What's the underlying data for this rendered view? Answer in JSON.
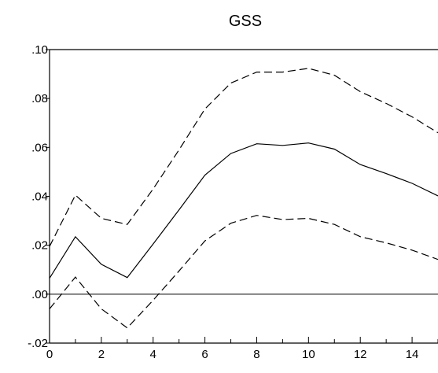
{
  "chart_data": {
    "type": "line",
    "title": "GSS",
    "xlabel": "",
    "ylabel": "",
    "xlim": [
      0,
      15
    ],
    "ylim": [
      -0.02,
      0.1
    ],
    "x": [
      0,
      1,
      2,
      3,
      4,
      5,
      6,
      7,
      8,
      9,
      10,
      11,
      12,
      13,
      14,
      15
    ],
    "x_ticks": [
      0,
      2,
      4,
      6,
      8,
      10,
      12,
      14
    ],
    "x_tick_labels": [
      "0",
      "2",
      "4",
      "6",
      "8",
      "10",
      "12",
      "14"
    ],
    "y_ticks": [
      -0.02,
      0.0,
      0.02,
      0.04,
      0.06,
      0.08,
      0.1
    ],
    "y_tick_labels": [
      "-.02",
      ".00",
      ".02",
      ".04",
      ".06",
      ".08",
      ".10"
    ],
    "zero_line": true,
    "grid": false,
    "series": [
      {
        "style": "solid",
        "values": [
          0.0065,
          0.0235,
          0.0122,
          0.0068,
          0.0205,
          0.0345,
          0.0487,
          0.0575,
          0.0615,
          0.0608,
          0.0618,
          0.0593,
          0.053,
          0.0493,
          0.0453,
          0.0402
        ]
      },
      {
        "style": "dashed",
        "values": [
          0.0195,
          0.0405,
          0.031,
          0.0285,
          0.043,
          0.059,
          0.0757,
          0.0863,
          0.0908,
          0.0908,
          0.0923,
          0.0895,
          0.0828,
          0.078,
          0.0725,
          0.066
        ]
      },
      {
        "style": "dashed",
        "values": [
          -0.006,
          0.007,
          -0.006,
          -0.0138,
          -0.0025,
          0.0095,
          0.0218,
          0.029,
          0.0322,
          0.0305,
          0.031,
          0.0285,
          0.0235,
          0.021,
          0.018,
          0.0142
        ]
      }
    ]
  }
}
